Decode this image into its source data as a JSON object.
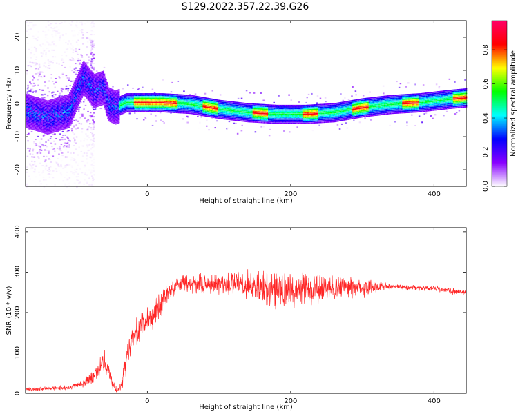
{
  "title": "S129.2022.357.22.39.G26",
  "chart_data": [
    {
      "type": "heatmap",
      "xlabel": "Height of straight line (km)",
      "ylabel": "Frequency (Hz)",
      "xlim": [
        -170,
        445
      ],
      "ylim": [
        -25,
        25
      ],
      "x_ticks": [
        0,
        200,
        400
      ],
      "y_ticks": [
        -20,
        -10,
        0,
        10,
        20
      ],
      "colorbar": {
        "label": "Normalized spectral amplitude",
        "range": [
          0,
          0.97
        ],
        "ticks": [
          0.0,
          0.2,
          0.4,
          0.6,
          0.8
        ],
        "colormap": [
          "#ffffff",
          "#8800ff",
          "#0000ff",
          "#00ffff",
          "#00ff00",
          "#ffff00",
          "#ff0000",
          "#ff0066"
        ]
      },
      "ridge": {
        "x": [
          -170,
          -140,
          -110,
          -90,
          -75,
          -62,
          -55,
          -45,
          -30,
          -10,
          20,
          60,
          100,
          140,
          180,
          220,
          260,
          300,
          340,
          380,
          420,
          445
        ],
        "y": [
          -2,
          -4,
          -2,
          8,
          4,
          5,
          0,
          -1,
          0.5,
          0.5,
          0.5,
          0,
          -1.5,
          -2.5,
          -3,
          -3,
          -2.5,
          -1,
          0,
          0.5,
          1.5,
          2
        ]
      }
    },
    {
      "type": "line",
      "xlabel": "Height of straight line (km)",
      "ylabel": "SNR (10 * v/v)",
      "xlim": [
        -170,
        445
      ],
      "ylim": [
        0,
        410
      ],
      "x_ticks": [
        0,
        200,
        400
      ],
      "y_ticks": [
        0,
        100,
        200,
        300,
        400
      ],
      "color": "#ff0000",
      "envelope": {
        "x": [
          -170,
          -130,
          -110,
          -90,
          -70,
          -60,
          -55,
          -48,
          -42,
          -35,
          -28,
          -20,
          -10,
          0,
          10,
          20,
          30,
          50,
          100,
          150,
          180,
          200,
          250,
          300,
          330,
          340,
          360,
          400,
          445
        ],
        "y": [
          10,
          12,
          15,
          25,
          50,
          80,
          60,
          20,
          5,
          30,
          100,
          140,
          160,
          180,
          200,
          225,
          255,
          270,
          270,
          265,
          260,
          255,
          260,
          262,
          265,
          265,
          262,
          260,
          248
        ],
        "noise": [
          6,
          6,
          8,
          12,
          25,
          35,
          30,
          15,
          8,
          25,
          45,
          40,
          40,
          40,
          40,
          40,
          30,
          25,
          35,
          45,
          55,
          50,
          40,
          30,
          15,
          8,
          8,
          8,
          10
        ]
      }
    }
  ]
}
